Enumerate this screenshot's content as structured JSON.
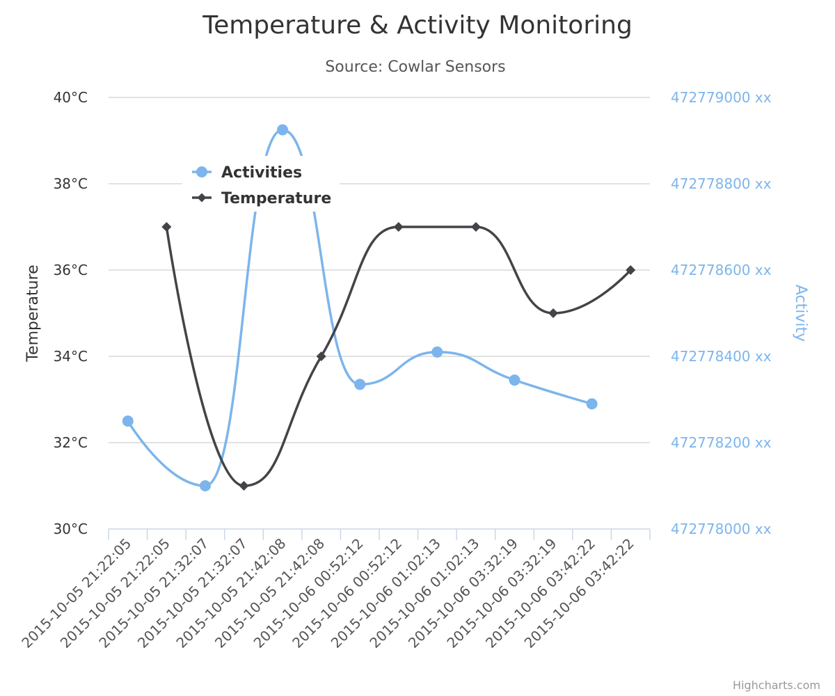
{
  "chart_data": {
    "type": "line",
    "title": "Temperature & Activity Monitoring",
    "subtitle": "Source: Cowlar Sensors",
    "credits": "Highcharts.com",
    "categories": [
      "2015-10-05 21:22:05",
      "2015-10-05 21:22:05",
      "2015-10-05 21:32:07",
      "2015-10-05 21:32:07",
      "2015-10-05 21:42:08",
      "2015-10-05 21:42:08",
      "2015-10-06 00:52:12",
      "2015-10-06 00:52:12",
      "2015-10-06 01:02:13",
      "2015-10-06 01:02:13",
      "2015-10-06 03:32:19",
      "2015-10-06 03:32:19",
      "2015-10-06 03:42:22",
      "2015-10-06 03:42:22"
    ],
    "y_left": {
      "title": "Temperature",
      "min": 30,
      "max": 40,
      "ticks": [
        30,
        32,
        34,
        36,
        38,
        40
      ],
      "tick_labels": [
        "30°C",
        "32°C",
        "34°C",
        "36°C",
        "38°C",
        "40°C"
      ],
      "color": "#333333"
    },
    "y_right": {
      "title": "Activity",
      "min": 472778000,
      "max": 472779000,
      "ticks": [
        472778000,
        472778200,
        472778400,
        472778600,
        472778800,
        472779000
      ],
      "tick_labels": [
        "472778000 xx",
        "472778200 xx",
        "472778400 xx",
        "472778600 xx",
        "472778800 xx",
        "472779000 xx"
      ],
      "color": "#7cb5ec"
    },
    "grid": true,
    "legend_position": "top-left",
    "series": [
      {
        "name": "Activities",
        "axis": "right",
        "color": "#7cb5ec",
        "marker": "circle",
        "points": [
          {
            "x": 0,
            "y": 472778250
          },
          {
            "x": 2,
            "y": 472778100
          },
          {
            "x": 4,
            "y": 472778925
          },
          {
            "x": 6,
            "y": 472778335
          },
          {
            "x": 8,
            "y": 472778410
          },
          {
            "x": 10,
            "y": 472778345
          },
          {
            "x": 12,
            "y": 472778290
          }
        ]
      },
      {
        "name": "Temperature",
        "axis": "left",
        "color": "#434348",
        "marker": "diamond",
        "points": [
          {
            "x": 1,
            "y": 37
          },
          {
            "x": 3,
            "y": 31
          },
          {
            "x": 5,
            "y": 34
          },
          {
            "x": 7,
            "y": 37
          },
          {
            "x": 9,
            "y": 37
          },
          {
            "x": 11,
            "y": 35
          },
          {
            "x": 13,
            "y": 36
          }
        ]
      }
    ]
  }
}
